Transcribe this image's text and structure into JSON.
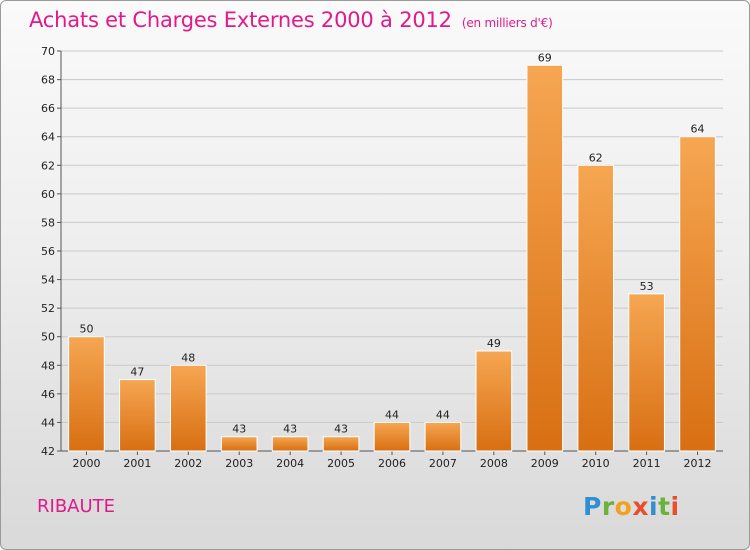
{
  "title": "Achats et Charges Externes 2000 à 2012",
  "unit": "(en milliers d'€)",
  "commune": "RIBAUTE",
  "logo": {
    "letters": [
      "P",
      "r",
      "o",
      "x",
      "i",
      "t",
      "i"
    ]
  },
  "colors": {
    "title": "#e01a8c",
    "bar_light": "#f6a652",
    "bar_dark": "#d86f12"
  },
  "chart_data": {
    "type": "bar",
    "categories": [
      "2000",
      "2001",
      "2002",
      "2003",
      "2004",
      "2005",
      "2006",
      "2007",
      "2008",
      "2009",
      "2010",
      "2011",
      "2012"
    ],
    "values": [
      50,
      47,
      48,
      43,
      43,
      43,
      44,
      44,
      49,
      69,
      62,
      53,
      64
    ],
    "title": "Achats et Charges Externes 2000 à 2012",
    "subtitle": "(en milliers d'€)",
    "xlabel": "",
    "ylabel": "",
    "ylim": [
      42,
      70
    ],
    "yticks": [
      42,
      44,
      46,
      48,
      50,
      52,
      54,
      56,
      58,
      60,
      62,
      64,
      66,
      68,
      70
    ],
    "grid": true,
    "legend": "none"
  }
}
